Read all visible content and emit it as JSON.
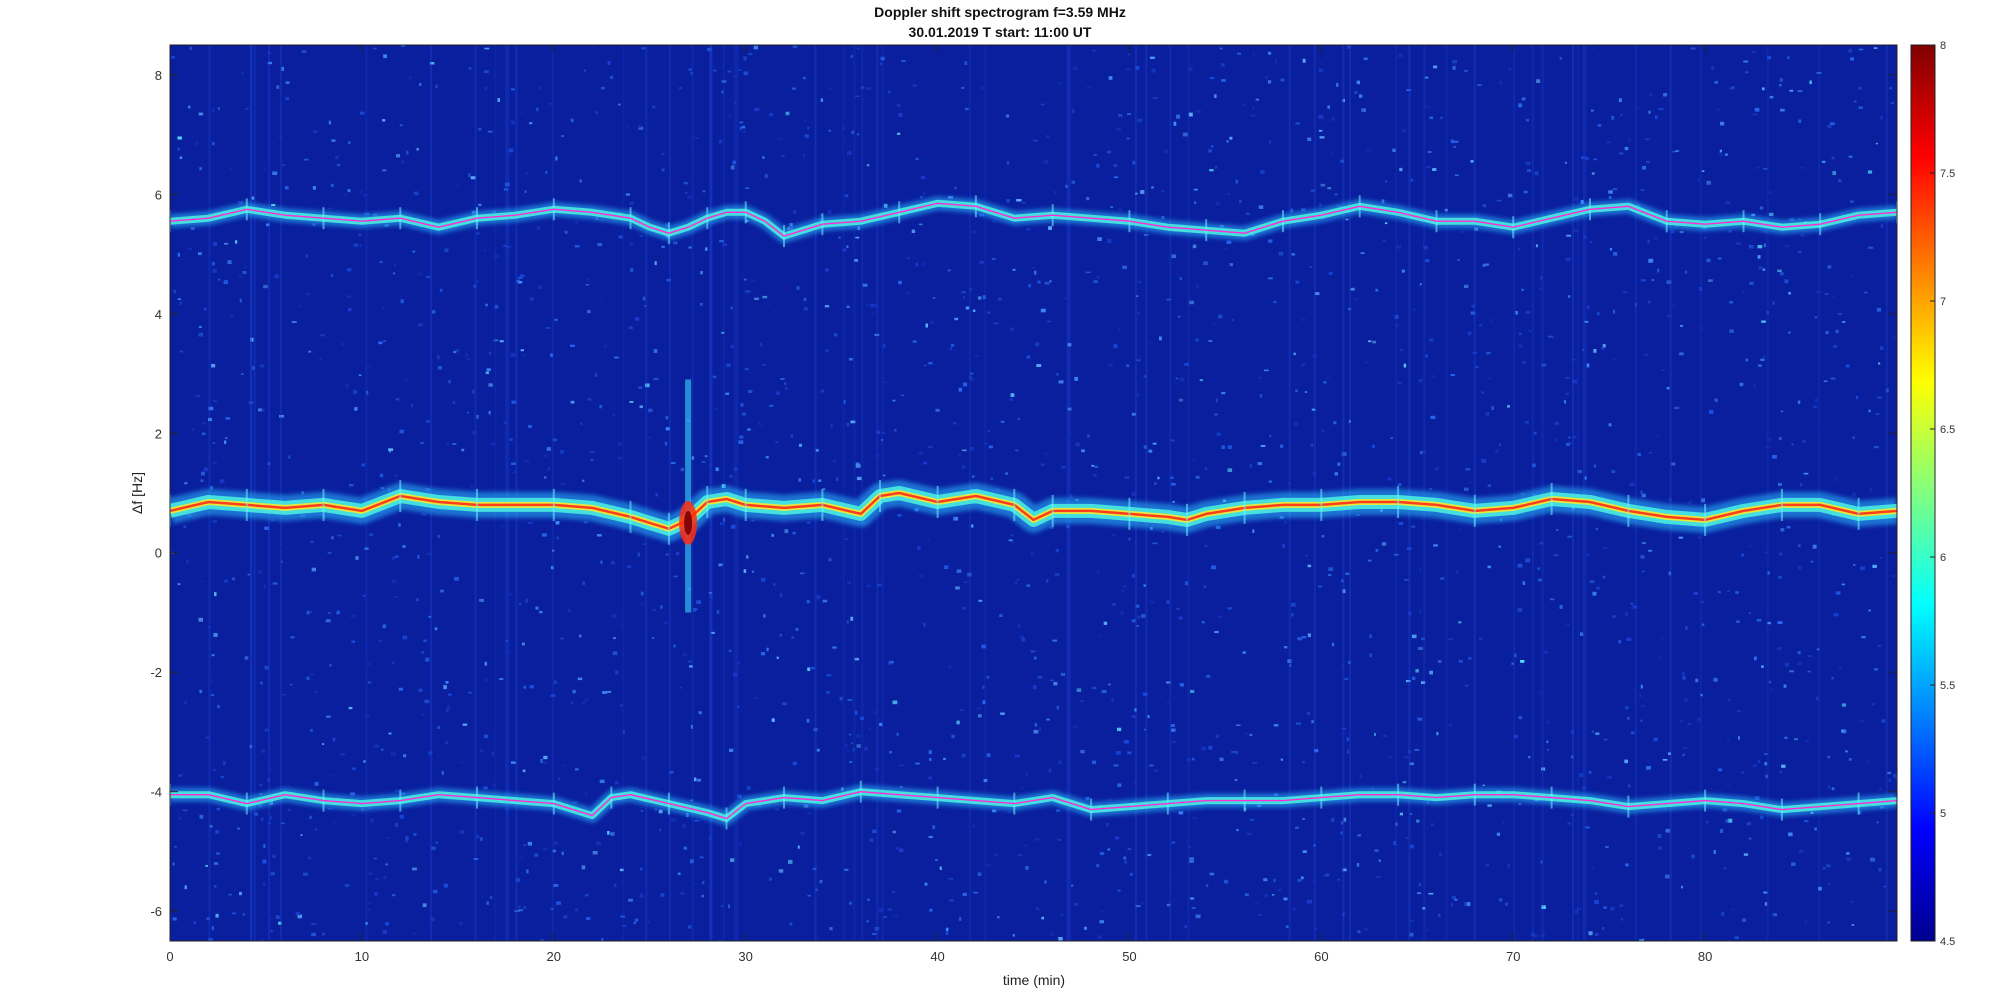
{
  "chart_data": {
    "type": "heatmap",
    "title": "Doppler shift spectrogram f=3.59 MHz",
    "subtitle": "30.01.2019    T start: 11:00 UT",
    "xlabel": "time (min)",
    "ylabel": "Δf [Hz]",
    "xlim": [
      0,
      90
    ],
    "ylim": [
      -6.5,
      8.5
    ],
    "xticks": [
      0,
      10,
      20,
      30,
      40,
      50,
      60,
      70,
      80
    ],
    "yticks": [
      -6,
      -4,
      -2,
      0,
      2,
      4,
      6,
      8
    ],
    "colorbar": {
      "colormap": "jet",
      "range": [
        4.5,
        8
      ],
      "ticks": [
        4.5,
        5,
        5.5,
        6,
        6.5,
        7,
        7.5,
        8
      ]
    },
    "background_color": "#0a1f9e",
    "trace_color": "#ff2ad4",
    "series": [
      {
        "x": [
          0,
          2,
          4,
          6,
          8,
          10,
          12,
          14,
          16,
          18,
          20,
          22,
          24,
          25,
          26,
          27,
          28,
          29,
          30,
          31,
          32,
          33,
          34,
          36,
          38,
          40,
          42,
          44,
          46,
          48,
          50,
          52,
          54,
          56,
          58,
          60,
          62,
          64,
          66,
          68,
          70,
          72,
          74,
          76,
          78,
          80,
          82,
          84,
          86,
          88,
          90
        ],
        "values": [
          5.55,
          5.6,
          5.75,
          5.65,
          5.6,
          5.55,
          5.6,
          5.45,
          5.6,
          5.65,
          5.75,
          5.7,
          5.6,
          5.45,
          5.35,
          5.45,
          5.6,
          5.7,
          5.7,
          5.55,
          5.3,
          5.4,
          5.5,
          5.55,
          5.7,
          5.85,
          5.8,
          5.6,
          5.65,
          5.6,
          5.55,
          5.45,
          5.4,
          5.35,
          5.55,
          5.65,
          5.8,
          5.7,
          5.55,
          5.55,
          5.45,
          5.6,
          5.75,
          5.8,
          5.55,
          5.5,
          5.55,
          5.45,
          5.5,
          5.65,
          5.7
        ]
      },
      {
        "x": [
          0,
          2,
          4,
          6,
          8,
          10,
          12,
          14,
          16,
          18,
          20,
          22,
          24,
          25,
          26,
          27,
          28,
          29,
          30,
          32,
          34,
          36,
          37,
          38,
          40,
          42,
          44,
          45,
          46,
          48,
          50,
          52,
          53,
          54,
          56,
          58,
          60,
          62,
          64,
          66,
          68,
          70,
          72,
          74,
          76,
          78,
          80,
          82,
          84,
          86,
          88,
          90
        ],
        "values": [
          0.7,
          0.85,
          0.8,
          0.75,
          0.8,
          0.7,
          0.95,
          0.85,
          0.8,
          0.8,
          0.8,
          0.75,
          0.6,
          0.5,
          0.4,
          0.55,
          0.85,
          0.9,
          0.8,
          0.75,
          0.8,
          0.65,
          0.95,
          1.0,
          0.85,
          0.95,
          0.8,
          0.55,
          0.7,
          0.7,
          0.65,
          0.6,
          0.55,
          0.65,
          0.75,
          0.8,
          0.8,
          0.85,
          0.85,
          0.8,
          0.7,
          0.75,
          0.9,
          0.85,
          0.7,
          0.6,
          0.55,
          0.7,
          0.8,
          0.8,
          0.65,
          0.7
        ]
      },
      {
        "x": [
          0,
          2,
          4,
          6,
          8,
          10,
          12,
          14,
          16,
          18,
          20,
          22,
          23,
          24,
          26,
          28,
          29,
          30,
          32,
          34,
          36,
          38,
          40,
          42,
          44,
          46,
          48,
          50,
          52,
          54,
          56,
          58,
          60,
          62,
          64,
          66,
          68,
          70,
          72,
          74,
          76,
          78,
          80,
          82,
          84,
          86,
          88,
          90
        ],
        "values": [
          -4.05,
          -4.05,
          -4.2,
          -4.05,
          -4.15,
          -4.2,
          -4.15,
          -4.05,
          -4.1,
          -4.15,
          -4.2,
          -4.4,
          -4.1,
          -4.05,
          -4.2,
          -4.35,
          -4.45,
          -4.2,
          -4.1,
          -4.15,
          -4.0,
          -4.05,
          -4.1,
          -4.15,
          -4.2,
          -4.1,
          -4.3,
          -4.25,
          -4.2,
          -4.15,
          -4.15,
          -4.15,
          -4.1,
          -4.05,
          -4.05,
          -4.1,
          -4.05,
          -4.05,
          -4.1,
          -4.15,
          -4.25,
          -4.2,
          -4.15,
          -4.2,
          -4.3,
          -4.25,
          -4.2,
          -4.15
        ]
      }
    ]
  }
}
